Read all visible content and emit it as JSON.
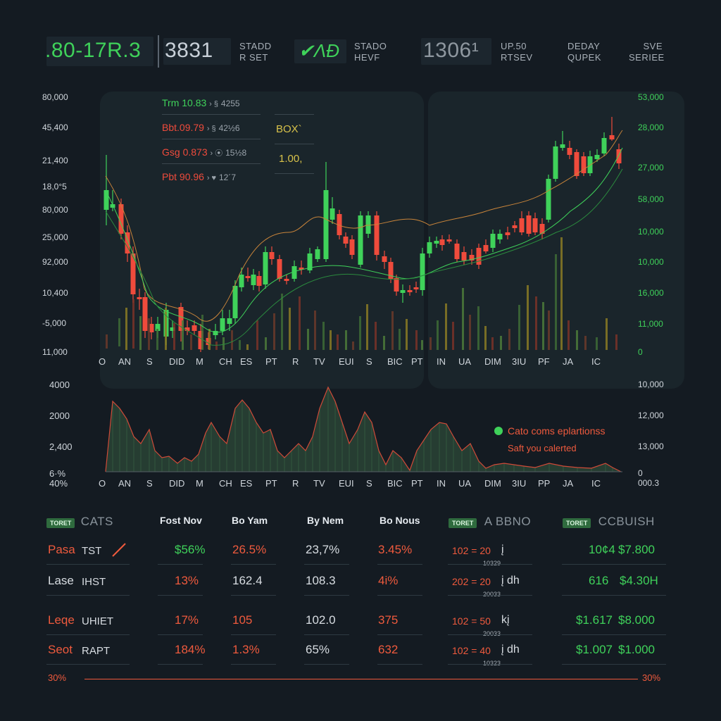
{
  "header": {
    "ticker": ".80-17R.3",
    "price": "3831",
    "stat1": [
      "STADD",
      "R SET"
    ],
    "sparkline_label": "✔ɅĐ",
    "stat2": [
      "STADO",
      "HEVF"
    ],
    "value2": "1306¹",
    "stat3": [
      "UP.50",
      "RTSEV"
    ],
    "stat4": [
      "DEDAY",
      "QUPEK"
    ],
    "stat5": [
      "SVE",
      "SERIEE"
    ]
  },
  "ohlc": [
    {
      "label": "Trm 10.83",
      "arrow": "› §",
      "val": "4255",
      "side": ""
    },
    {
      "label": "Bbt.09.79",
      "arrow": "› §",
      "val": "42½6",
      "side": "BOX`"
    },
    {
      "label": "Gsg 0.873",
      "arrow": "› ⦿",
      "val": "15½8",
      "side": "1.00,"
    },
    {
      "label": "Pbt 90.96",
      "arrow": "› ♥",
      "val": "12´7",
      "side": ""
    }
  ],
  "colors": {
    "up": "#3fd25a",
    "down": "#ef4b3c",
    "bg": "#141b22",
    "panel": "#1a252b"
  },
  "main_yaxis_left": [
    "80,000",
    "45,400",
    "21,400",
    "18,0°5",
    "80,000",
    "25,000",
    "92,000",
    "10,400",
    "-5,000",
    "11,000"
  ],
  "main_yaxis_right": [
    "53,000",
    "28,000",
    "27,000",
    "58,000",
    "10,000",
    "10,000",
    "16,000",
    "11,000",
    "0"
  ],
  "xticks": [
    "O",
    "AN",
    "S",
    "DID",
    "M",
    "CH",
    "ES",
    "PT",
    "R",
    "TV",
    "EUI",
    "S",
    "BIC",
    "PT",
    "IN",
    "UA",
    "DIM",
    "3IU",
    "PF",
    "JA",
    "IC"
  ],
  "xticks2": [
    "O",
    "AN",
    "S",
    "DID",
    "M",
    "CH",
    "ES",
    "PT",
    "R",
    "TV",
    "EUI",
    "S",
    "BIC",
    "PT",
    "IN",
    "UA",
    "DIM",
    "3IU",
    "PP",
    "JA",
    "IC"
  ],
  "area_yaxis_left": [
    "4000",
    "2000",
    "2,400",
    "6·%",
    "40%"
  ],
  "area_yaxis_right": [
    "10,000",
    "12,000",
    "13,000",
    "0",
    "000.3"
  ],
  "legend": {
    "line1": "Cato coms eplartionss",
    "line2": "Saft you calerted"
  },
  "table_left": {
    "tag": "TORET",
    "title": "CATS",
    "headers": [
      "Fost Nov",
      "Bo Yam",
      "By Nem",
      "Bo Nous"
    ],
    "rows": [
      {
        "name": "Pasa",
        "sub": "TST",
        "cells": [
          "$56%",
          "26.5%",
          "23,7%",
          "3.45%"
        ],
        "colors": [
          "green",
          "red",
          "white",
          "red"
        ],
        "namecolor": "red"
      },
      {
        "name": "Lase",
        "sub": "IHST",
        "cells": [
          "13%",
          "162.4",
          "108.3",
          "4i%"
        ],
        "colors": [
          "red",
          "white",
          "white",
          "red"
        ],
        "namecolor": "white"
      },
      {
        "name": "Leqe",
        "sub": "UHIET",
        "cells": [
          "17%",
          "105",
          "102.0",
          "375"
        ],
        "colors": [
          "red",
          "red",
          "white",
          "red"
        ],
        "namecolor": "red"
      },
      {
        "name": "Seot",
        "sub": "RAPT",
        "cells": [
          "184%",
          "1.3%",
          "65%",
          "632"
        ],
        "colors": [
          "red",
          "red",
          "white",
          "red"
        ],
        "namecolor": "red"
      }
    ],
    "footer_left": "30%"
  },
  "table_mid": {
    "tag": "TORET",
    "title": "A BBNO",
    "rows": [
      {
        "a": "102 = 20",
        "b": "į",
        "sub": "10329"
      },
      {
        "a": "202 = 20",
        "b": "į dh",
        "sub": "20033"
      },
      {
        "a": "102 = 50",
        "b": "kį",
        "sub": "20033"
      },
      {
        "a": "102 = 40",
        "b": "į dh",
        "sub": "10323"
      }
    ]
  },
  "table_right": {
    "tag": "TORET",
    "title": "CCBUISH",
    "rows": [
      {
        "a": "10¢4",
        "b": "$7.800"
      },
      {
        "a": "616",
        "b": "$4.30H"
      },
      {
        "a": "$1.617",
        "b": "$8.000"
      },
      {
        "a": "$1.007",
        "b": "$1.000"
      }
    ],
    "footer_right": "30%"
  }
}
